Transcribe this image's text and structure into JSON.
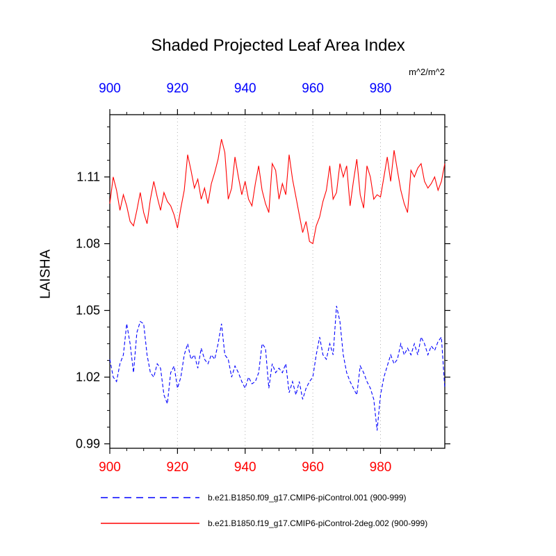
{
  "title": "Shaded Projected Leaf Area Index",
  "units_label": "m^2/m^2",
  "y_axis_label": "LAISHA",
  "colors": {
    "background": "#ffffff",
    "box": "#000000",
    "grid": "#b0b0b0",
    "top_axis_labels": "#0000ff",
    "bottom_axis_labels": "#ff0000",
    "left_axis_labels": "#000000",
    "series_blue": "#0000ff",
    "series_red": "#ff0000"
  },
  "legend": [
    {
      "label": "b.e21.B1850.f09_g17.CMIP6-piControl.001 (900-999)",
      "color": "#0000ff",
      "style": "dashed"
    },
    {
      "label": "b.e21.B1850.f19_g17.CMIP6-piControl-2deg.002 (900-999)",
      "color": "#ff0000",
      "style": "solid"
    }
  ],
  "chart_data": {
    "type": "line",
    "title": "Shaded Projected Leaf Area Index",
    "xlabel": "",
    "ylabel": "LAISHA",
    "units": "m^2/m^2",
    "xlim": [
      900,
      999
    ],
    "ylim": [
      0.988,
      1.138
    ],
    "x_ticks": [
      900,
      920,
      940,
      960,
      980
    ],
    "y_ticks": [
      0.99,
      1.02,
      1.05,
      1.08,
      1.11
    ],
    "grid_x": [
      920,
      940,
      960,
      980
    ],
    "grid_style": "dotted",
    "legend_position": "bottom",
    "x_start": 900,
    "x_step": 1,
    "series": [
      {
        "name": "b.e21.B1850.f09_g17.CMIP6-piControl.001 (900-999)",
        "color": "#0000ff",
        "dash": "5 3",
        "values": [
          1.028,
          1.02,
          1.018,
          1.026,
          1.03,
          1.044,
          1.035,
          1.022,
          1.04,
          1.045,
          1.044,
          1.03,
          1.022,
          1.02,
          1.026,
          1.024,
          1.012,
          1.008,
          1.022,
          1.025,
          1.015,
          1.02,
          1.03,
          1.035,
          1.028,
          1.03,
          1.024,
          1.033,
          1.028,
          1.026,
          1.03,
          1.028,
          1.035,
          1.044,
          1.03,
          1.028,
          1.02,
          1.025,
          1.022,
          1.018,
          1.015,
          1.02,
          1.017,
          1.018,
          1.022,
          1.035,
          1.033,
          1.015,
          1.026,
          1.022,
          1.024,
          1.022,
          1.026,
          1.013,
          1.018,
          1.012,
          1.018,
          1.01,
          1.015,
          1.018,
          1.02,
          1.03,
          1.038,
          1.03,
          1.028,
          1.035,
          1.03,
          1.052,
          1.045,
          1.03,
          1.022,
          1.018,
          1.015,
          1.012,
          1.025,
          1.022,
          1.018,
          1.015,
          1.01,
          0.996,
          1.012,
          1.02,
          1.025,
          1.03,
          1.026,
          1.028,
          1.035,
          1.03,
          1.033,
          1.03,
          1.035,
          1.03,
          1.038,
          1.035,
          1.03,
          1.034,
          1.032,
          1.036,
          1.038,
          1.015
        ]
      },
      {
        "name": "b.e21.B1850.f19_g17.CMIP6-piControl-2deg.002 (900-999)",
        "color": "#ff0000",
        "dash": "",
        "values": [
          1.098,
          1.11,
          1.104,
          1.095,
          1.102,
          1.097,
          1.09,
          1.088,
          1.095,
          1.103,
          1.094,
          1.089,
          1.1,
          1.108,
          1.101,
          1.095,
          1.103,
          1.099,
          1.097,
          1.093,
          1.087,
          1.096,
          1.104,
          1.12,
          1.113,
          1.105,
          1.109,
          1.1,
          1.105,
          1.098,
          1.107,
          1.112,
          1.118,
          1.127,
          1.121,
          1.1,
          1.105,
          1.119,
          1.11,
          1.102,
          1.108,
          1.1,
          1.097,
          1.107,
          1.115,
          1.104,
          1.098,
          1.094,
          1.116,
          1.113,
          1.1,
          1.107,
          1.102,
          1.12,
          1.109,
          1.101,
          1.093,
          1.085,
          1.09,
          1.081,
          1.08,
          1.088,
          1.092,
          1.099,
          1.104,
          1.115,
          1.1,
          1.103,
          1.116,
          1.11,
          1.115,
          1.097,
          1.108,
          1.118,
          1.102,
          1.096,
          1.115,
          1.11,
          1.1,
          1.102,
          1.101,
          1.11,
          1.119,
          1.108,
          1.122,
          1.113,
          1.104,
          1.098,
          1.094,
          1.113,
          1.11,
          1.114,
          1.116,
          1.108,
          1.105,
          1.107,
          1.11,
          1.104,
          1.108,
          1.116
        ]
      }
    ]
  }
}
